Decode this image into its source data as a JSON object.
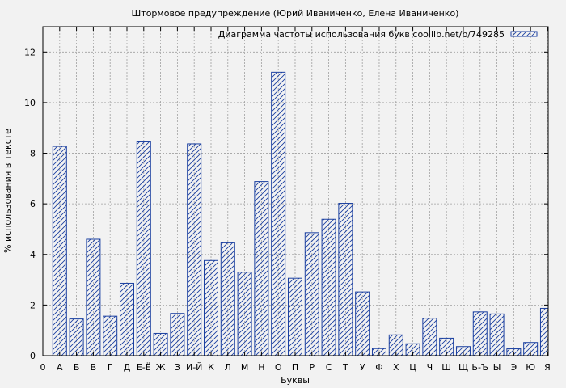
{
  "chart_data": {
    "type": "bar",
    "title": "Штормовое предупреждение (Юрий Иваниченко, Елена Иваниченко)",
    "xlabel": "Буквы",
    "ylabel": "% использования в тексте",
    "ylim": [
      0,
      13
    ],
    "yticks": [
      0,
      2,
      4,
      6,
      8,
      10,
      12
    ],
    "grid": true,
    "legend_position": "top-right",
    "x_origin_label": "0",
    "categories": [
      "А",
      "Б",
      "В",
      "Г",
      "Д",
      "Е-Ё",
      "Ж",
      "З",
      "И-Й",
      "К",
      "Л",
      "М",
      "Н",
      "О",
      "П",
      "Р",
      "С",
      "Т",
      "У",
      "Ф",
      "Х",
      "Ц",
      "Ч",
      "Ш",
      "Щ",
      "Ь-Ъ",
      "Ы",
      "Э",
      "Ю",
      "Я"
    ],
    "series": [
      {
        "name": "Диаграмма частоты использования букв coollib.net/b/749285",
        "values": [
          8.27,
          1.45,
          4.6,
          1.56,
          2.86,
          8.45,
          0.88,
          1.67,
          8.37,
          3.76,
          4.46,
          3.3,
          6.88,
          11.2,
          3.06,
          4.86,
          5.39,
          6.02,
          2.52,
          0.28,
          0.82,
          0.47,
          1.48,
          0.69,
          0.36,
          1.73,
          1.65,
          0.27,
          0.52,
          1.87
        ]
      }
    ],
    "colors": {
      "bar_stroke": "#1a3fa0",
      "plot_bg": "#f2f2f2",
      "grid": "#a0a0a0"
    }
  }
}
